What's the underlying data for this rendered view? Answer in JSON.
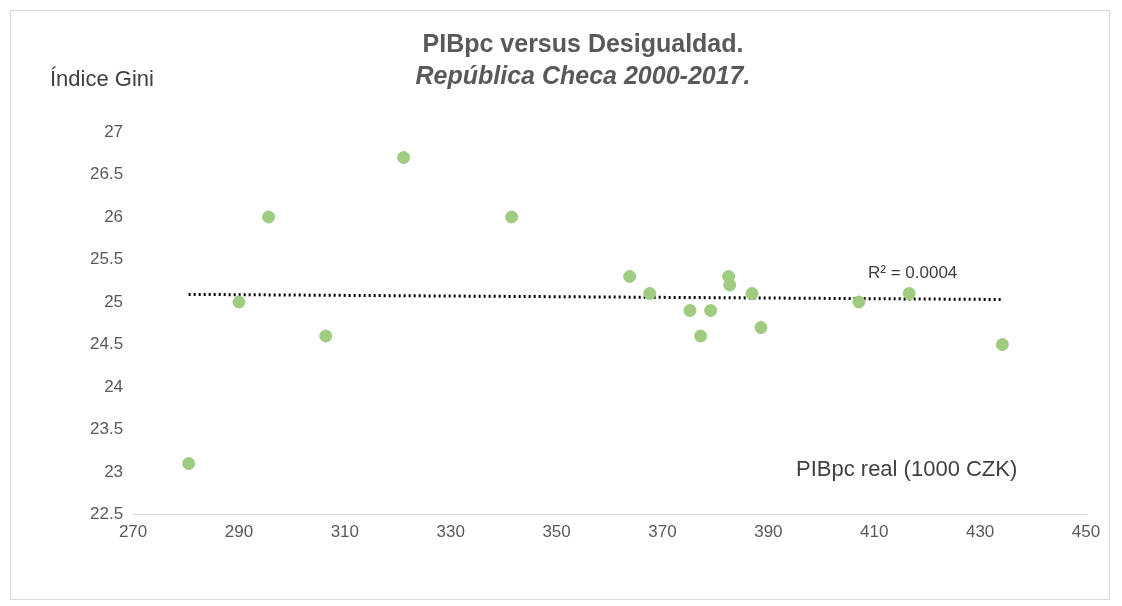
{
  "chart_data": {
    "type": "scatter",
    "title": "PIBpc versus Desigualdad.",
    "subtitle": "República Checa 2000-2017.",
    "xlabel": "PIBpc real (1000 CZK)",
    "ylabel": "Índice Gini",
    "xlim": [
      270,
      450
    ],
    "xticks": [
      270,
      290,
      310,
      330,
      350,
      370,
      390,
      410,
      430,
      450
    ],
    "ylim": [
      22.5,
      27
    ],
    "yticks": [
      22.5,
      23,
      23.5,
      24,
      24.5,
      25,
      25.5,
      26,
      26.5,
      27
    ],
    "grid": false,
    "legend": false,
    "marker": "circle",
    "annotations": [
      "R² = 0.0004"
    ],
    "series": [
      {
        "color": "#a0cc82",
        "x": [
          280.5,
          290.0,
          295.6,
          306.4,
          321.1,
          341.5,
          363.8,
          367.6,
          375.2,
          377.2,
          379.1,
          382.5,
          382.7,
          386.9,
          388.6,
          407.1,
          416.6,
          434.2
        ],
        "values": [
          23.1,
          25.0,
          26.0,
          24.6,
          26.7,
          26.0,
          25.3,
          25.1,
          24.9,
          24.6,
          24.9,
          25.3,
          25.2,
          25.1,
          24.7,
          25.0,
          25.1,
          24.5
        ]
      },
      {
        "type": "line",
        "color": "#000000",
        "marker": "none",
        "line_style": "dotted",
        "x": [
          280.5,
          434.2
        ],
        "values": [
          25.09,
          25.03
        ]
      }
    ]
  }
}
